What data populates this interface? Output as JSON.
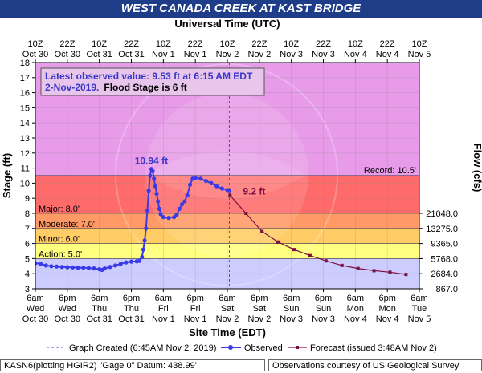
{
  "page_title": "WEST CANADA CREEK AT KAST BRIDGE",
  "footer_left": "KASN6(plotting HGIR2) \"Gage 0\" Datum: 438.99'",
  "footer_right": "Observations courtesy of US Geological Survey",
  "colors": {
    "title_bg": "#1f3c88",
    "above_record": "#e79be8",
    "major": "#ff6a6a",
    "moderate": "#ff9966",
    "minor": "#ffcc66",
    "action": "#ffff80",
    "normal": "#ccccff",
    "observed": "#3a3ae8",
    "forecast": "#7a1040",
    "record_line": "#333333"
  },
  "chart_data": {
    "type": "line",
    "title": "WEST CANADA CREEK AT KAST BRIDGE",
    "top_axis_title": "Universal Time (UTC)",
    "xlabel": "Site Time (EDT)",
    "ylabel": "Stage (ft)",
    "y2label": "Flow (cfs)",
    "ylim": [
      3,
      18
    ],
    "yticks": [
      "3",
      "4",
      "5",
      "6",
      "7",
      "8",
      "9",
      "10",
      "11",
      "12",
      "13",
      "14",
      "15",
      "16",
      "17",
      "18"
    ],
    "xlim_hours": [
      0,
      144
    ],
    "bottom_ticks": [
      {
        "h": 0,
        "t1": "6am",
        "t2": "Wed",
        "t3": "Oct 30"
      },
      {
        "h": 12,
        "t1": "6pm",
        "t2": "Wed",
        "t3": "Oct 30"
      },
      {
        "h": 24,
        "t1": "6am",
        "t2": "Thu",
        "t3": "Oct 31"
      },
      {
        "h": 36,
        "t1": "6pm",
        "t2": "Thu",
        "t3": "Oct 31"
      },
      {
        "h": 48,
        "t1": "6am",
        "t2": "Fri",
        "t3": "Nov 1"
      },
      {
        "h": 60,
        "t1": "6pm",
        "t2": "Fri",
        "t3": "Nov 1"
      },
      {
        "h": 72,
        "t1": "6am",
        "t2": "Sat",
        "t3": "Nov 2"
      },
      {
        "h": 84,
        "t1": "6pm",
        "t2": "Sat",
        "t3": "Nov 2"
      },
      {
        "h": 96,
        "t1": "6am",
        "t2": "Sun",
        "t3": "Nov 3"
      },
      {
        "h": 108,
        "t1": "6pm",
        "t2": "Sun",
        "t3": "Nov 3"
      },
      {
        "h": 120,
        "t1": "6am",
        "t2": "Mon",
        "t3": "Nov 4"
      },
      {
        "h": 132,
        "t1": "6pm",
        "t2": "Mon",
        "t3": "Nov 4"
      },
      {
        "h": 144,
        "t1": "6am",
        "t2": "Tue",
        "t3": "Nov 5"
      }
    ],
    "top_ticks": [
      {
        "h": 0,
        "t1": "10Z",
        "t2": "Oct 30"
      },
      {
        "h": 12,
        "t1": "22Z",
        "t2": "Oct 30"
      },
      {
        "h": 24,
        "t1": "10Z",
        "t2": "Oct 31"
      },
      {
        "h": 36,
        "t1": "22Z",
        "t2": "Oct 31"
      },
      {
        "h": 48,
        "t1": "10Z",
        "t2": "Nov 1"
      },
      {
        "h": 60,
        "t1": "22Z",
        "t2": "Nov 1"
      },
      {
        "h": 72,
        "t1": "10Z",
        "t2": "Nov 2"
      },
      {
        "h": 84,
        "t1": "22Z",
        "t2": "Nov 2"
      },
      {
        "h": 96,
        "t1": "10Z",
        "t2": "Nov 3"
      },
      {
        "h": 108,
        "t1": "22Z",
        "t2": "Nov 3"
      },
      {
        "h": 120,
        "t1": "10Z",
        "t2": "Nov 4"
      },
      {
        "h": 132,
        "t1": "22Z",
        "t2": "Nov 4"
      },
      {
        "h": 144,
        "t1": "10Z",
        "t2": "Nov 5"
      }
    ],
    "flow_ticks": [
      {
        "stage": 3,
        "label": "867.0"
      },
      {
        "stage": 4,
        "label": "2684.0"
      },
      {
        "stage": 5,
        "label": "5768.0"
      },
      {
        "stage": 6,
        "label": "9365.0"
      },
      {
        "stage": 7,
        "label": "13275.0"
      },
      {
        "stage": 8,
        "label": "21048.0"
      }
    ],
    "bands": [
      {
        "name": "normal",
        "from": 3,
        "to": 5
      },
      {
        "name": "action",
        "from": 5,
        "to": 6
      },
      {
        "name": "minor",
        "from": 6,
        "to": 7
      },
      {
        "name": "moderate",
        "from": 7,
        "to": 8
      },
      {
        "name": "major",
        "from": 8,
        "to": 10.5
      },
      {
        "name": "above_record",
        "from": 10.5,
        "to": 18
      }
    ],
    "stage_labels": [
      {
        "stage": 8,
        "text": "Major: 8.0'"
      },
      {
        "stage": 7,
        "text": "Moderate: 7.0'"
      },
      {
        "stage": 6,
        "text": "Minor: 6.0'"
      },
      {
        "stage": 5,
        "text": "Action: 5.0'"
      }
    ],
    "record": {
      "stage": 10.5,
      "label": "Record: 10.5'"
    },
    "created_line_h": 72.75,
    "info_line1": "Latest observed value: 9.53 ft at 6:15 AM EDT",
    "info_line2a": "2-Nov-2019.",
    "info_line2b": "Flood Stage is 6 ft",
    "peak": {
      "h": 43.5,
      "value": 10.94,
      "label": "10.94 ft"
    },
    "forecast_label": "9.2 ft",
    "legend": {
      "created": "Graph Created (6:45AM Nov 2, 2019)",
      "observed": "Observed",
      "forecast": "Forecast (issued 3:48AM Nov 2)"
    },
    "series": [
      {
        "name": "Observed",
        "points": [
          [
            0,
            4.7
          ],
          [
            2,
            4.65
          ],
          [
            4,
            4.55
          ],
          [
            6,
            4.5
          ],
          [
            8,
            4.48
          ],
          [
            10,
            4.45
          ],
          [
            12,
            4.43
          ],
          [
            14,
            4.42
          ],
          [
            16,
            4.4
          ],
          [
            18,
            4.4
          ],
          [
            20,
            4.38
          ],
          [
            22,
            4.35
          ],
          [
            24,
            4.3
          ],
          [
            25,
            4.25
          ],
          [
            26,
            4.35
          ],
          [
            28,
            4.45
          ],
          [
            30,
            4.55
          ],
          [
            32,
            4.65
          ],
          [
            34,
            4.75
          ],
          [
            36,
            4.8
          ],
          [
            38,
            4.82
          ],
          [
            39,
            4.85
          ],
          [
            40,
            5.1
          ],
          [
            40.5,
            5.6
          ],
          [
            41,
            6.2
          ],
          [
            41.5,
            7.0
          ],
          [
            42,
            8.2
          ],
          [
            42.5,
            9.5
          ],
          [
            43,
            10.5
          ],
          [
            43.5,
            10.94
          ],
          [
            44,
            10.8
          ],
          [
            44.5,
            10.3
          ],
          [
            45,
            9.8
          ],
          [
            45.5,
            9.3
          ],
          [
            46,
            8.8
          ],
          [
            46.5,
            8.3
          ],
          [
            47,
            7.95
          ],
          [
            48,
            7.75
          ],
          [
            50,
            7.7
          ],
          [
            52,
            7.75
          ],
          [
            53,
            7.9
          ],
          [
            54,
            8.3
          ],
          [
            55,
            8.6
          ],
          [
            56,
            8.8
          ],
          [
            57,
            9.2
          ],
          [
            58,
            9.9
          ],
          [
            59,
            10.3
          ],
          [
            60,
            10.35
          ],
          [
            62,
            10.3
          ],
          [
            64,
            10.15
          ],
          [
            66,
            10.0
          ],
          [
            68,
            9.8
          ],
          [
            70,
            9.65
          ],
          [
            72,
            9.55
          ],
          [
            72.75,
            9.53
          ]
        ]
      },
      {
        "name": "Forecast",
        "points": [
          [
            73,
            9.2
          ],
          [
            79,
            8.0
          ],
          [
            85,
            6.8
          ],
          [
            91,
            6.1
          ],
          [
            97,
            5.6
          ],
          [
            103,
            5.2
          ],
          [
            109,
            4.85
          ],
          [
            115,
            4.55
          ],
          [
            121,
            4.35
          ],
          [
            127,
            4.2
          ],
          [
            133,
            4.1
          ],
          [
            139,
            3.95
          ]
        ]
      }
    ]
  }
}
